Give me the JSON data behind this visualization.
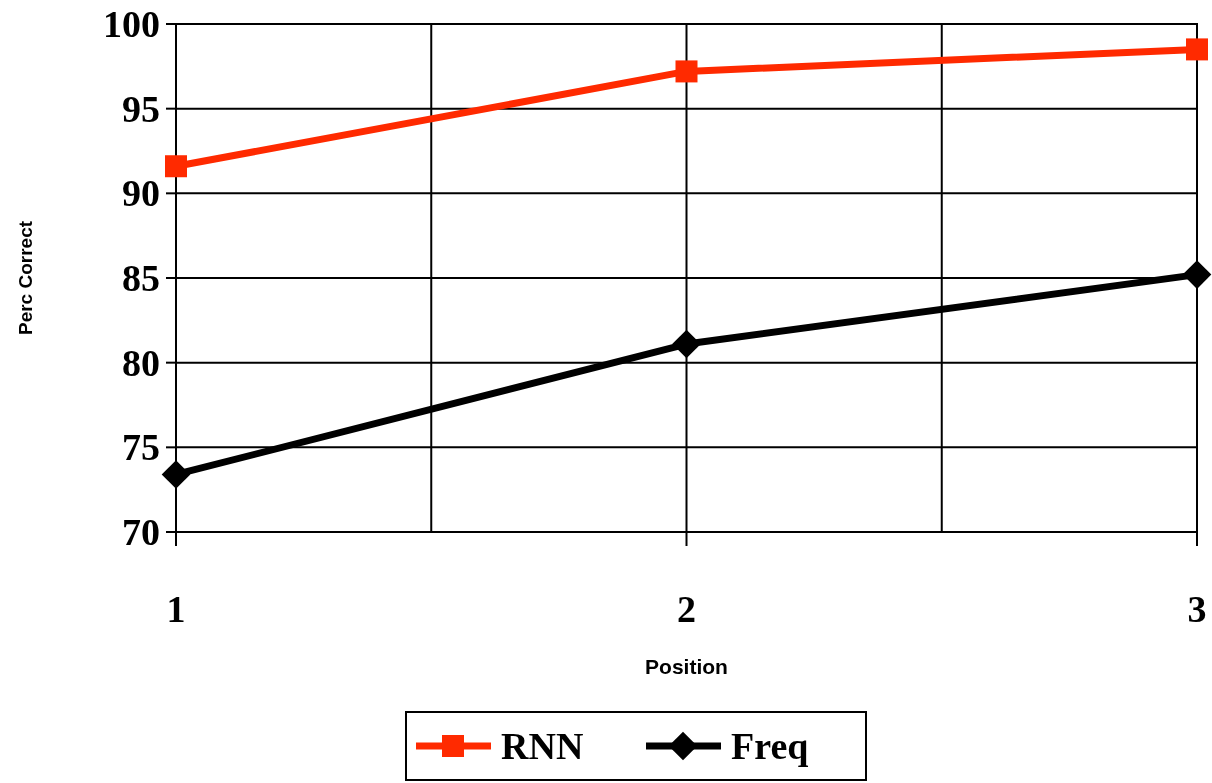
{
  "chart_data": {
    "type": "line",
    "xlabel": "Position",
    "ylabel": "Perc Correct",
    "x": [
      1,
      2,
      3
    ],
    "series": [
      {
        "name": "RNN",
        "color": "#ff2a00",
        "values": [
          91.6,
          97.2,
          98.5
        ],
        "marker": "square"
      },
      {
        "name": "Freq",
        "color": "#000000",
        "values": [
          73.4,
          81.1,
          85.2
        ],
        "marker": "diamond"
      }
    ],
    "xlim": [
      1,
      3
    ],
    "xticks": [
      1,
      {
        "value": 1.5,
        "label": null
      },
      2,
      {
        "value": 2.5,
        "label": null
      },
      3
    ],
    "ylim": [
      70,
      100
    ],
    "yticks": [
      70,
      75,
      80,
      85,
      90,
      95,
      100
    ],
    "grid": true,
    "legend": "bottom",
    "line_style": "solid"
  }
}
